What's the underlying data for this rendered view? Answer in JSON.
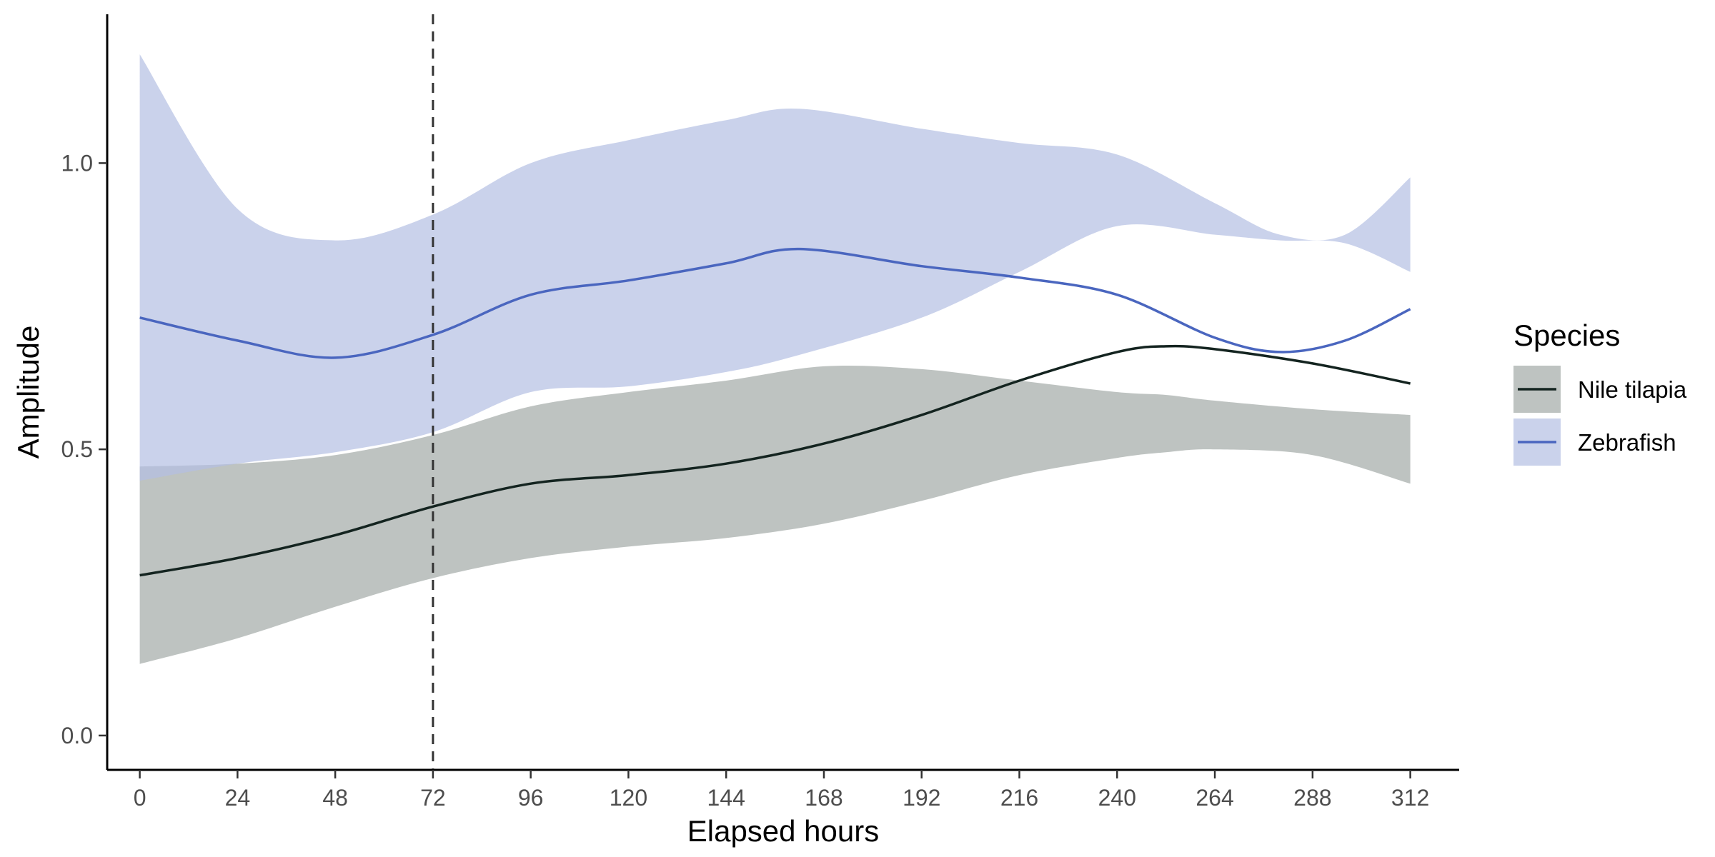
{
  "chart_data": {
    "type": "line",
    "xlabel": "Elapsed hours",
    "ylabel": "Amplitude",
    "xlim": [
      -8,
      324
    ],
    "ylim": [
      -0.06,
      1.26
    ],
    "x_ticks": [
      0,
      24,
      48,
      72,
      96,
      120,
      144,
      168,
      192,
      216,
      240,
      264,
      288,
      312
    ],
    "y_ticks": [
      0.0,
      0.5,
      1.0
    ],
    "y_tick_labels": [
      "0.0",
      "0.5",
      "1.0"
    ],
    "grid": false,
    "vline": {
      "x": 72,
      "style": "dashed",
      "color": "#333333"
    },
    "legend": {
      "title": "Species",
      "position": "right"
    },
    "series": [
      {
        "name": "Nile tilapia",
        "line_color": "#142420",
        "band_color": "#a2aaa7",
        "x": [
          0,
          24,
          48,
          72,
          96,
          120,
          144,
          168,
          192,
          216,
          240,
          252,
          264,
          288,
          312
        ],
        "y": [
          0.28,
          0.31,
          0.35,
          0.4,
          0.44,
          0.455,
          0.475,
          0.51,
          0.56,
          0.62,
          0.67,
          0.68,
          0.675,
          0.65,
          0.615
        ],
        "lower": [
          0.125,
          0.17,
          0.225,
          0.275,
          0.31,
          0.33,
          0.345,
          0.37,
          0.41,
          0.455,
          0.485,
          0.495,
          0.5,
          0.49,
          0.44
        ],
        "upper": [
          0.47,
          0.475,
          0.49,
          0.525,
          0.575,
          0.6,
          0.62,
          0.645,
          0.64,
          0.62,
          0.6,
          0.595,
          0.585,
          0.57,
          0.56
        ]
      },
      {
        "name": "Zebrafish",
        "line_color": "#4a66bf",
        "band_color": "#b3bfe3",
        "x": [
          0,
          24,
          48,
          72,
          96,
          120,
          144,
          162,
          192,
          216,
          240,
          264,
          280,
          296,
          312
        ],
        "y": [
          0.73,
          0.69,
          0.66,
          0.7,
          0.77,
          0.795,
          0.825,
          0.85,
          0.82,
          0.8,
          0.77,
          0.695,
          0.67,
          0.69,
          0.745
        ],
        "lower": [
          0.445,
          0.475,
          0.495,
          0.53,
          0.6,
          0.61,
          0.635,
          0.665,
          0.73,
          0.81,
          0.89,
          0.875,
          0.865,
          0.86,
          0.81
        ],
        "upper": [
          1.19,
          0.92,
          0.865,
          0.91,
          1.0,
          1.04,
          1.075,
          1.095,
          1.06,
          1.035,
          1.015,
          0.93,
          0.875,
          0.875,
          0.975
        ]
      }
    ]
  }
}
